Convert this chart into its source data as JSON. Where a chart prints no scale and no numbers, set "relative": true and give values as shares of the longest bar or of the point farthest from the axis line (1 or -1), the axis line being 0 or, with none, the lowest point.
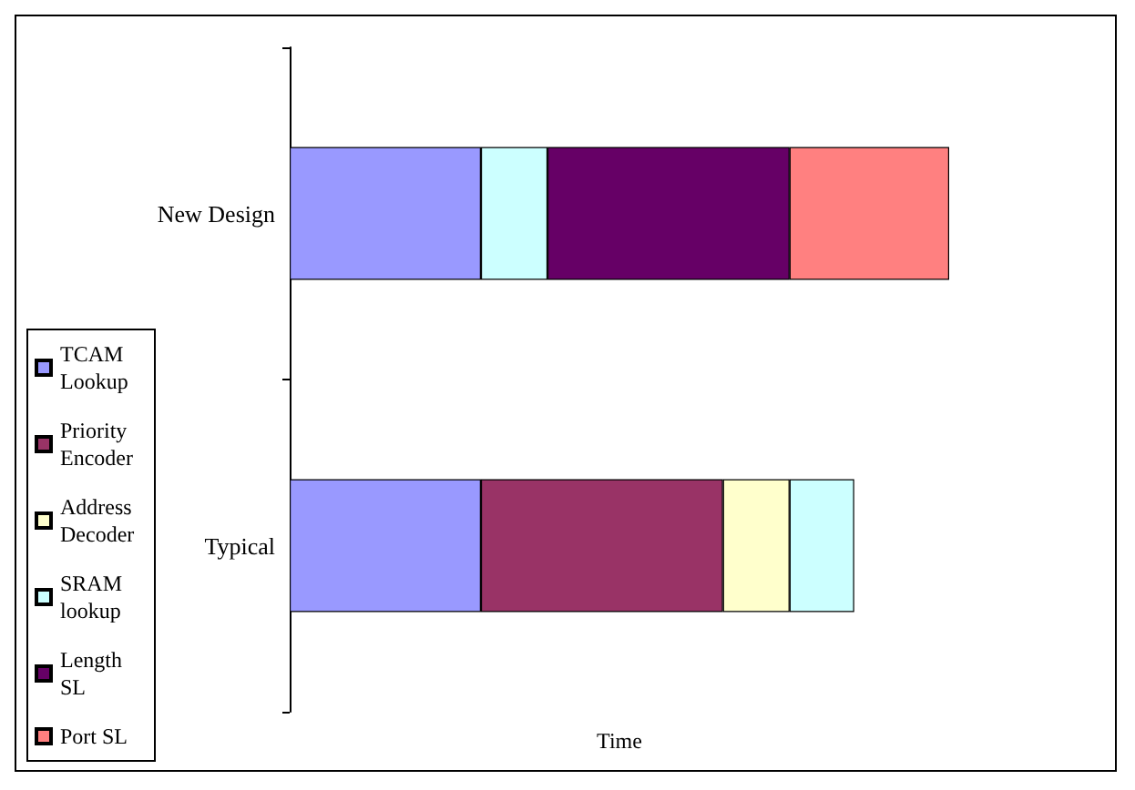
{
  "chart_data": {
    "type": "bar",
    "orientation": "horizontal",
    "stacked": true,
    "relative": true,
    "xlabel": "Time",
    "categories": [
      "New Design",
      "Typical"
    ],
    "legend": "left",
    "grid": false,
    "series": [
      {
        "name": "TCAM Lookup",
        "color": "#9999ff",
        "values": [
          0.29,
          0.29
        ]
      },
      {
        "name": "Priority Encoder",
        "color": "#993366",
        "values": [
          null,
          0.367
        ]
      },
      {
        "name": "Address Decoder",
        "color": "#ffffcc",
        "values": [
          null,
          0.101
        ]
      },
      {
        "name": "SRAM lookup",
        "color": "#ccffff",
        "values": [
          0.101,
          0.098
        ]
      },
      {
        "name": "Length SL",
        "color": "#660066",
        "values": [
          0.367,
          null
        ]
      },
      {
        "name": "Port SL",
        "color": "#ff8080",
        "values": [
          0.242,
          null
        ]
      }
    ]
  }
}
